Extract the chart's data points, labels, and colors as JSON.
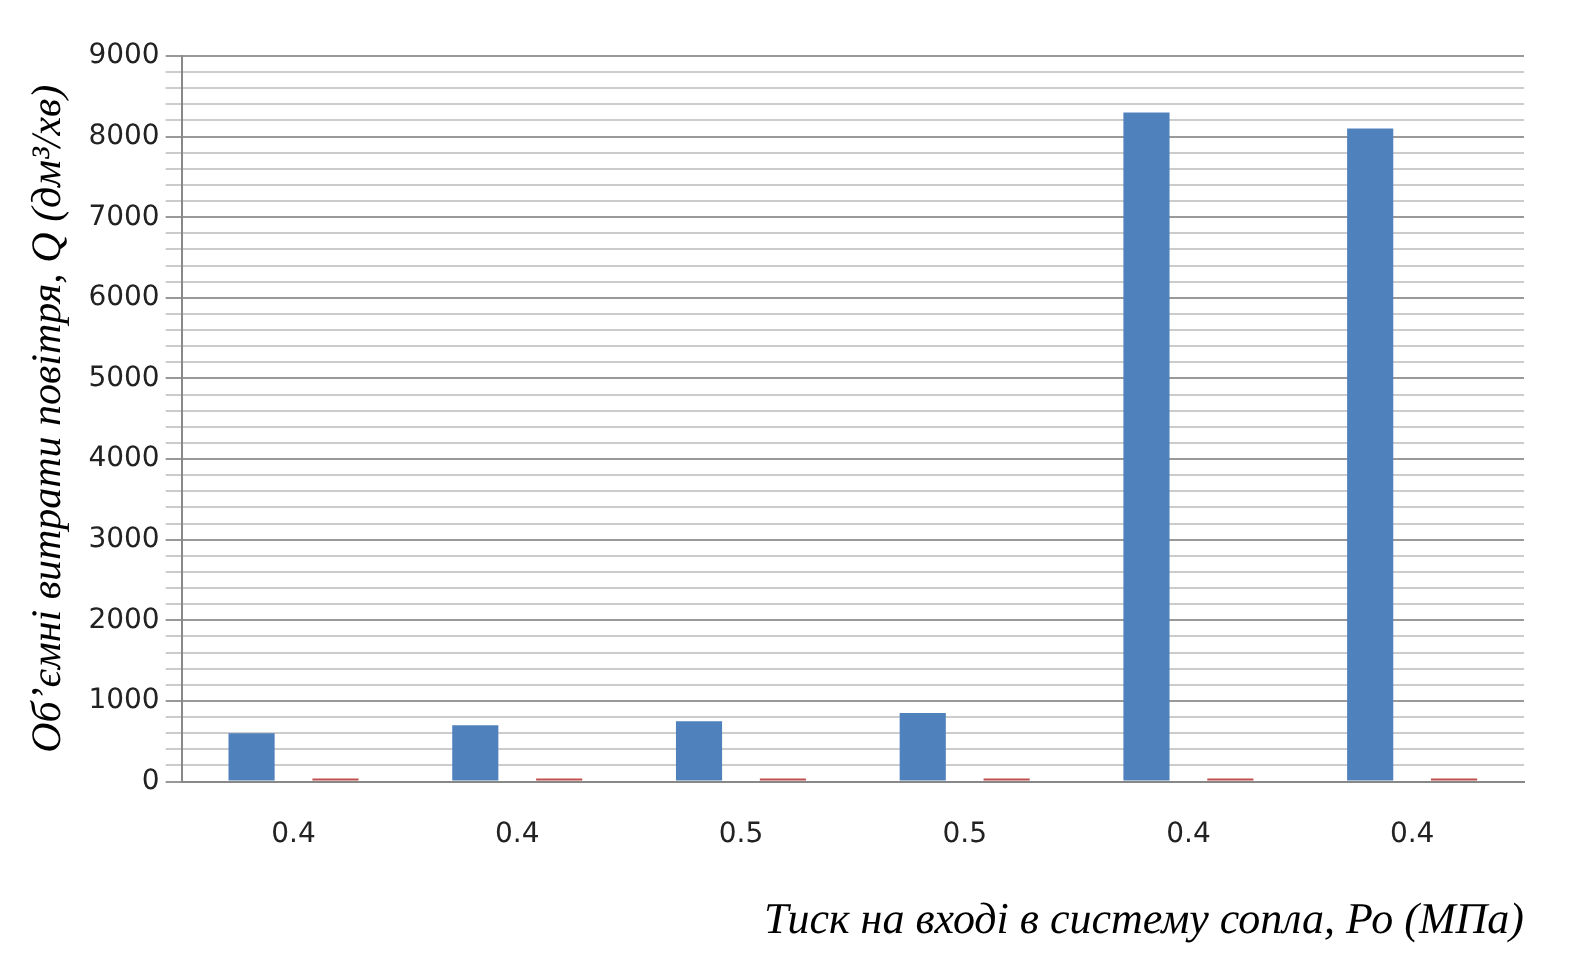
{
  "chart_data": {
    "type": "bar",
    "xlabel": "Тиск на вході в систему сопла, Ро (МПа)",
    "ylabel": "Об’ємні витрати повітря, Q (дм³/хв)",
    "categories": [
      "0.4",
      "0.4",
      "0.5",
      "0.5",
      "0.4",
      "0.4"
    ],
    "series": [
      {
        "color": "#4f81bd",
        "values": [
          600,
          700,
          750,
          850,
          8300,
          8100
        ]
      },
      {
        "color": "#c0504d",
        "values": [
          40,
          40,
          40,
          40,
          40,
          40
        ]
      }
    ],
    "ylim": [
      0,
      9000
    ],
    "yticks": [
      0,
      {
        "value": 200,
        "label": null
      },
      {
        "value": 400,
        "label": null
      },
      {
        "value": 600,
        "label": null
      },
      {
        "value": 800,
        "label": null
      },
      1000,
      {
        "value": 1200,
        "label": null
      },
      {
        "value": 1400,
        "label": null
      },
      {
        "value": 1600,
        "label": null
      },
      {
        "value": 1800,
        "label": null
      },
      2000,
      {
        "value": 2200,
        "label": null
      },
      {
        "value": 2400,
        "label": null
      },
      {
        "value": 2600,
        "label": null
      },
      {
        "value": 2800,
        "label": null
      },
      3000,
      {
        "value": 3200,
        "label": null
      },
      {
        "value": 3400,
        "label": null
      },
      {
        "value": 3600,
        "label": null
      },
      {
        "value": 3800,
        "label": null
      },
      4000,
      {
        "value": 4200,
        "label": null
      },
      {
        "value": 4400,
        "label": null
      },
      {
        "value": 4600,
        "label": null
      },
      {
        "value": 4800,
        "label": null
      },
      5000,
      {
        "value": 5200,
        "label": null
      },
      {
        "value": 5400,
        "label": null
      },
      {
        "value": 5600,
        "label": null
      },
      {
        "value": 5800,
        "label": null
      },
      6000,
      {
        "value": 6200,
        "label": null
      },
      {
        "value": 6400,
        "label": null
      },
      {
        "value": 6600,
        "label": null
      },
      {
        "value": 6800,
        "label": null
      },
      7000,
      {
        "value": 7200,
        "label": null
      },
      {
        "value": 7400,
        "label": null
      },
      {
        "value": 7600,
        "label": null
      },
      {
        "value": 7800,
        "label": null
      },
      8000,
      {
        "value": 8200,
        "label": null
      },
      {
        "value": 8400,
        "label": null
      },
      {
        "value": 8600,
        "label": null
      },
      {
        "value": 8800,
        "label": null
      },
      9000
    ],
    "grid": "y",
    "legend": false
  }
}
